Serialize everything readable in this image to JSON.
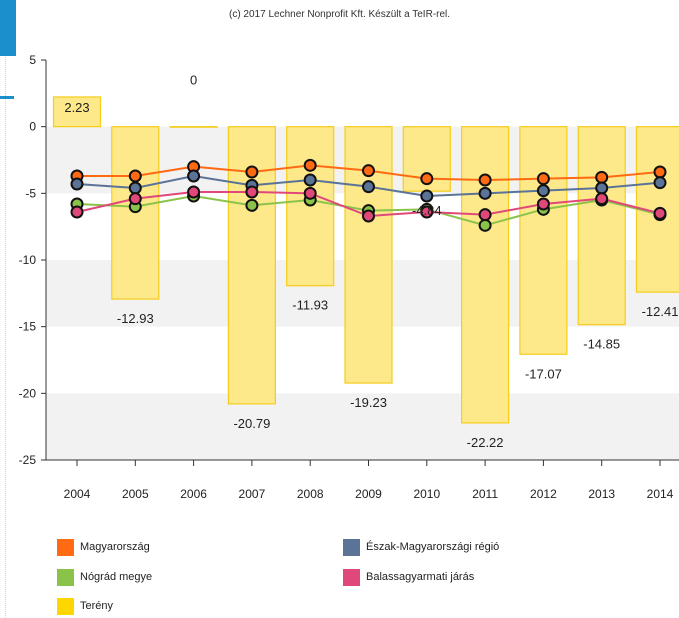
{
  "credit": "(c) 2017 Lechner Nonprofit Kft. Készült a TeIR-rel.",
  "chart_data": {
    "type": "bar+line",
    "categories": [
      "2004",
      "2005",
      "2006",
      "2007",
      "2008",
      "2009",
      "2010",
      "2011",
      "2012",
      "2013",
      "2014"
    ],
    "ylim": [
      -25,
      5
    ],
    "yticks": [
      5,
      0,
      -5,
      -10,
      -15,
      -20,
      -25
    ],
    "ytick_labels": [
      "5",
      "0",
      "-5",
      "-10",
      "-15",
      "-20",
      "-25"
    ],
    "bars": {
      "name": "Terény",
      "color": "#ffd700",
      "values": [
        2.23,
        -12.93,
        0,
        -20.79,
        -11.93,
        -19.23,
        -4.84,
        -22.22,
        -17.07,
        -14.85,
        -12.41
      ],
      "labels": [
        "2.23",
        "-12.93",
        "0",
        "-20.79",
        "-11.93",
        "-19.23",
        "-4.84",
        "-22.22",
        "-17.07",
        "-14.85",
        "-12.41"
      ]
    },
    "series": [
      {
        "name": "Magyarország",
        "color": "#ff6a13",
        "values": [
          -3.7,
          -3.7,
          -3.0,
          -3.4,
          -2.9,
          -3.3,
          -3.9,
          -4.0,
          -3.9,
          -3.8,
          -3.4
        ]
      },
      {
        "name": "Észak-Magyarországi régió",
        "color": "#5a7396",
        "values": [
          -4.3,
          -4.6,
          -3.7,
          -4.4,
          -4.0,
          -4.5,
          -5.2,
          -5.0,
          -4.8,
          -4.6,
          -4.2
        ]
      },
      {
        "name": "Nógrád megye",
        "color": "#8bc34a",
        "values": [
          -5.8,
          -6.0,
          -5.2,
          -5.9,
          -5.5,
          -6.3,
          -6.2,
          -7.4,
          -6.2,
          -5.5,
          -6.6
        ]
      },
      {
        "name": "Balassagyarmati járás",
        "color": "#e0487a",
        "values": [
          -6.4,
          -5.4,
          -4.9,
          -4.9,
          -5.0,
          -6.7,
          -6.4,
          -6.6,
          -5.8,
          -5.4,
          -6.5
        ]
      }
    ],
    "grid": "horizontal bands"
  },
  "legend": [
    {
      "label": "Magyarország",
      "color": "#ff6a13"
    },
    {
      "label": "Észak-Magyarországi régió",
      "color": "#5a7396"
    },
    {
      "label": "Nógrád megye",
      "color": "#8bc34a"
    },
    {
      "label": "Balassagyarmati járás",
      "color": "#e0487a"
    },
    {
      "label": "Terény",
      "color": "#ffd700"
    }
  ]
}
